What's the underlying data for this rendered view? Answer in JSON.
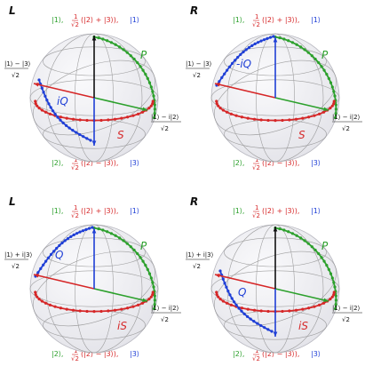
{
  "colors": {
    "green": "#2ca02c",
    "red": "#d62728",
    "blue": "#1f3fd6",
    "black": "#111111",
    "sphere": "#ececf0",
    "grid": "#8a8a8a"
  },
  "panels": [
    {
      "letter": "L",
      "top": {
        "green": "|1⟩,",
        "red": "(|2⟩ + |3⟩),",
        "blue": "|1⟩"
      },
      "bottom": {
        "green": "|2⟩,",
        "red": "(|2⟩ − |3⟩),",
        "blue": "|3⟩"
      },
      "left_num": "|1⟩ − |3⟩",
      "right_num": "|1⟩ − i|2⟩",
      "sqrt2": "√2",
      "curve_labels": {
        "green": "P",
        "red": "S",
        "blue": "iQ"
      },
      "up_vector": "black",
      "blue_arc": "down"
    },
    {
      "letter": "R",
      "top": {
        "green": "|1⟩,",
        "red": "(|2⟩ + |3⟩),",
        "blue": "|1⟩"
      },
      "bottom": {
        "green": "|2⟩,",
        "red": "(|2⟩ − |3⟩),",
        "blue": "|3⟩"
      },
      "left_num": "|1⟩ − |3⟩",
      "right_num": "|1⟩ − i|2⟩",
      "sqrt2": "√2",
      "curve_labels": {
        "green": "P",
        "red": "S",
        "blue": "-iQ"
      },
      "up_vector": "blue",
      "blue_arc": "up"
    },
    {
      "letter": "L",
      "top": {
        "green": "|1⟩,",
        "red": "(|2⟩ + |3⟩),",
        "blue": "|1⟩"
      },
      "bottom": {
        "green": "|2⟩,",
        "red": "(|2⟩ − |3⟩),",
        "blue": "|3⟩"
      },
      "left_num": "|1⟩ + i|3⟩",
      "right_num": "|1⟩ − i|2⟩",
      "sqrt2": "√2",
      "curve_labels": {
        "green": "P",
        "red": "iS",
        "blue": "Q"
      },
      "up_vector": "blue",
      "blue_arc": "up"
    },
    {
      "letter": "R",
      "top": {
        "green": "|1⟩,",
        "red": "(|2⟩ + |3⟩),",
        "blue": "|1⟩"
      },
      "bottom": {
        "green": "|2⟩,",
        "red": "(|2⟩ − |3⟩),",
        "blue": "|3⟩"
      },
      "left_num": "|1⟩ + i|3⟩",
      "right_num": "|1⟩ − i|2⟩",
      "sqrt2": "√2",
      "curve_labels": {
        "green": "P",
        "red": "iS",
        "blue": "Q"
      },
      "up_vector": "black",
      "blue_arc": "down"
    }
  ],
  "frac_prefix": {
    "num": "1",
    "den": "√2"
  }
}
